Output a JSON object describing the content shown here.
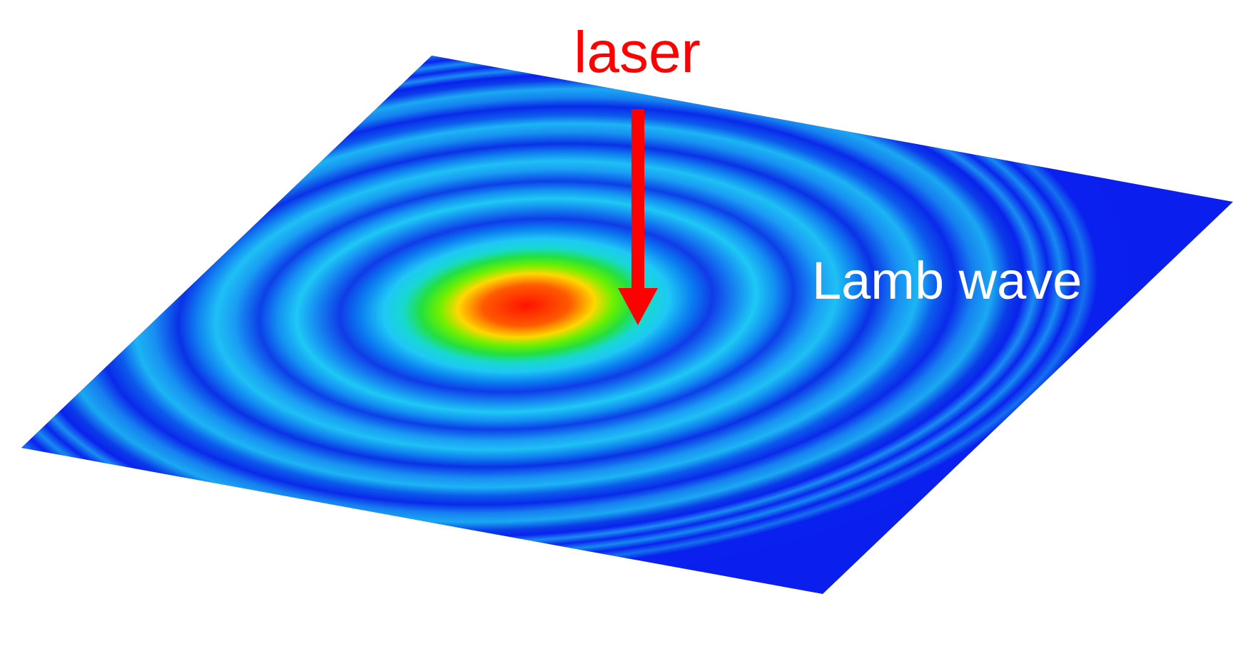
{
  "labels": {
    "laser": "laser",
    "wave": "Lamb wave"
  },
  "colors": {
    "laser_label": "#ff0000",
    "arrow": "#ff0000",
    "wave_label": "#ffffff",
    "plate_background": "#0a1fee",
    "ring_light": "#1ec8f5",
    "center_hot": "#ff1a00",
    "center_warm": "#ffd200",
    "center_green": "#2fe000"
  },
  "icons": {
    "arrow": "down-arrow-icon"
  }
}
